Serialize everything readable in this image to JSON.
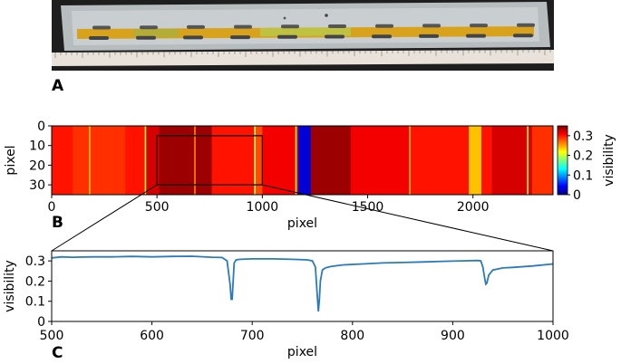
{
  "panels": {
    "a": {
      "label": "A"
    },
    "b": {
      "label": "B"
    },
    "c": {
      "label": "C"
    }
  },
  "photo": {
    "plate_color": "#b7bcbf",
    "strip_color": "#d8a21c",
    "ruler_color": "#e8e2da"
  },
  "chart_data": [
    {
      "type": "heatmap",
      "xlabel": "pixel",
      "ylabel": "pixel",
      "xlim": [
        0,
        2380
      ],
      "ylim": [
        35,
        0
      ],
      "xticks": [
        0,
        500,
        1000,
        1500,
        2000
      ],
      "yticks": [
        0,
        10,
        20,
        30
      ],
      "colorbar": {
        "label": "visibility",
        "range": [
          0,
          0.35
        ],
        "ticks": [
          0,
          0.1,
          0.2,
          0.3
        ],
        "colormap": "jet"
      },
      "column_visibility": [
        {
          "x0": 0,
          "x1": 100,
          "value": 0.3
        },
        {
          "x0": 100,
          "x1": 350,
          "value": 0.29
        },
        {
          "x0": 350,
          "x1": 440,
          "value": 0.3
        },
        {
          "x0": 440,
          "x1": 510,
          "value": 0.32
        },
        {
          "x0": 510,
          "x1": 760,
          "value": 0.34
        },
        {
          "x0": 760,
          "x1": 960,
          "value": 0.3
        },
        {
          "x0": 960,
          "x1": 1000,
          "value": 0.28
        },
        {
          "x0": 1000,
          "x1": 1170,
          "value": 0.31
        },
        {
          "x0": 1170,
          "x1": 1230,
          "value": 0.03
        },
        {
          "x0": 1230,
          "x1": 1420,
          "value": 0.34
        },
        {
          "x0": 1420,
          "x1": 1700,
          "value": 0.31
        },
        {
          "x0": 1700,
          "x1": 1980,
          "value": 0.3
        },
        {
          "x0": 1980,
          "x1": 2040,
          "value": 0.24
        },
        {
          "x0": 2040,
          "x1": 2090,
          "value": 0.3
        },
        {
          "x0": 2090,
          "x1": 2280,
          "value": 0.32
        },
        {
          "x0": 2280,
          "x1": 2380,
          "value": 0.29
        }
      ],
      "thin_lines": [
        {
          "x": 180,
          "value": 0.24
        },
        {
          "x": 445,
          "value": 0.22
        },
        {
          "x": 680,
          "value": 0.26
        },
        {
          "x": 965,
          "value": 0.18
        },
        {
          "x": 1160,
          "value": 0.22
        },
        {
          "x": 1700,
          "value": 0.24
        },
        {
          "x": 2260,
          "value": 0.22
        }
      ],
      "zoom_box": {
        "x0": 500,
        "x1": 1000,
        "y0": 5,
        "y1": 30
      }
    },
    {
      "type": "line",
      "xlabel": "pixel",
      "ylabel": "visibility",
      "xlim": [
        500,
        1000
      ],
      "ylim": [
        0,
        0.35
      ],
      "xticks": [
        500,
        600,
        700,
        800,
        900,
        1000
      ],
      "yticks": [
        0,
        0.1,
        0.2,
        0.3
      ],
      "line_color": "#2b7bba",
      "series": [
        {
          "x": [
            500,
            510,
            520,
            540,
            560,
            580,
            600,
            620,
            640,
            660,
            670,
            675,
            678,
            679,
            680,
            681,
            682,
            684,
            688,
            700,
            720,
            740,
            755,
            760,
            763,
            765,
            766,
            767,
            768,
            770,
            773,
            778,
            790,
            810,
            830,
            850,
            870,
            890,
            910,
            925,
            928,
            930,
            932,
            933,
            934,
            936,
            940,
            950,
            960,
            980,
            1000
          ],
          "y": [
            0.315,
            0.32,
            0.318,
            0.32,
            0.32,
            0.322,
            0.32,
            0.322,
            0.323,
            0.318,
            0.317,
            0.3,
            0.18,
            0.11,
            0.11,
            0.2,
            0.29,
            0.305,
            0.308,
            0.31,
            0.31,
            0.308,
            0.305,
            0.3,
            0.27,
            0.12,
            0.05,
            0.11,
            0.2,
            0.255,
            0.265,
            0.272,
            0.28,
            0.285,
            0.29,
            0.292,
            0.295,
            0.298,
            0.3,
            0.302,
            0.3,
            0.27,
            0.21,
            0.185,
            0.19,
            0.23,
            0.255,
            0.265,
            0.268,
            0.275,
            0.285
          ]
        }
      ]
    }
  ]
}
